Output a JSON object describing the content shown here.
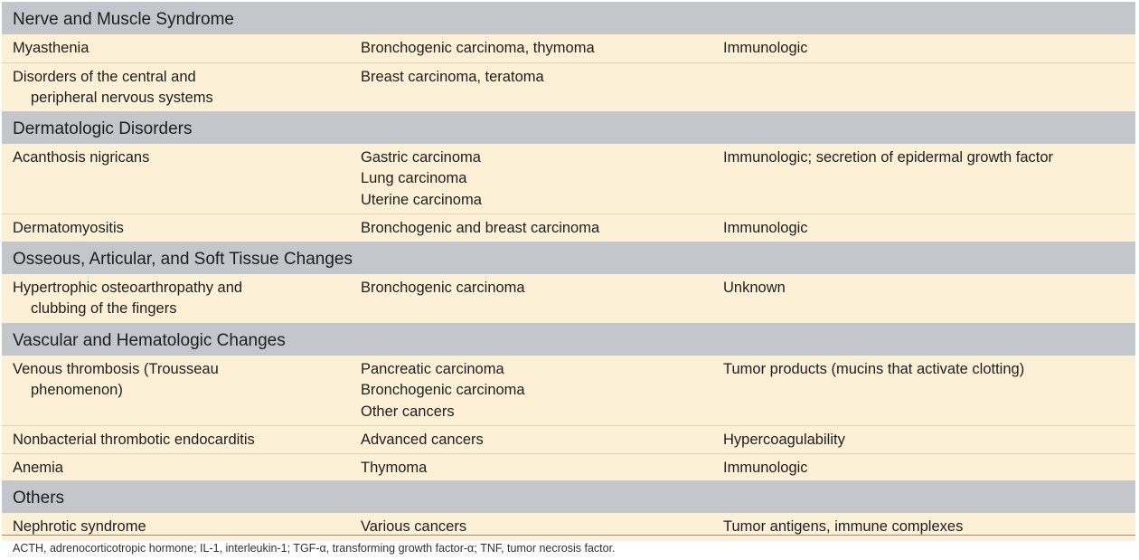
{
  "sections": [
    {
      "title": "Nerve and Muscle Syndrome",
      "rows": [
        {
          "col1": [
            "Myasthenia"
          ],
          "col2": [
            "Bronchogenic carcinoma, thymoma"
          ],
          "col3": [
            "Immunologic"
          ]
        },
        {
          "col1": [
            "Disorders of the central and",
            "peripheral nervous systems"
          ],
          "col2": [
            "Breast carcinoma, teratoma"
          ],
          "col3": []
        }
      ]
    },
    {
      "title": "Dermatologic Disorders",
      "rows": [
        {
          "col1": [
            "Acanthosis nigricans"
          ],
          "col2": [
            "Gastric carcinoma",
            "Lung carcinoma",
            "Uterine carcinoma"
          ],
          "col3": [
            "Immunologic; secretion of epidermal growth factor"
          ]
        },
        {
          "col1": [
            "Dermatomyositis"
          ],
          "col2": [
            "Bronchogenic and breast carcinoma"
          ],
          "col3": [
            "Immunologic"
          ]
        }
      ]
    },
    {
      "title": "Osseous, Articular, and Soft Tissue Changes",
      "rows": [
        {
          "col1": [
            "Hypertrophic osteoarthropathy and",
            "clubbing of the fingers"
          ],
          "col2": [
            "Bronchogenic carcinoma"
          ],
          "col3": [
            "Unknown"
          ]
        }
      ]
    },
    {
      "title": "Vascular and Hematologic Changes",
      "rows": [
        {
          "col1": [
            "Venous thrombosis (Trousseau",
            "phenomenon)"
          ],
          "col2": [
            "Pancreatic carcinoma",
            "Bronchogenic carcinoma",
            "Other cancers"
          ],
          "col3": [
            "Tumor products (mucins that activate clotting)"
          ]
        },
        {
          "col1": [
            "Nonbacterial thrombotic endocarditis"
          ],
          "col2": [
            "Advanced cancers"
          ],
          "col3": [
            "Hypercoagulability"
          ]
        },
        {
          "col1": [
            "Anemia"
          ],
          "col2": [
            "Thymoma"
          ],
          "col3": [
            "Immunologic"
          ]
        }
      ]
    },
    {
      "title": "Others",
      "rows": [
        {
          "col1": [
            "Nephrotic syndrome"
          ],
          "col2": [
            "Various cancers"
          ],
          "col3": [
            "Tumor antigens, immune complexes"
          ]
        }
      ]
    }
  ],
  "footnote": "ACTH, adrenocorticotropic hormone; IL-1, interleukin-1; TGF-α, transforming growth factor-α; TNF, tumor necrosis factor.",
  "colors": {
    "section_header_bg": "#c3c6cb",
    "row_bg": "#fcf1d6",
    "row_divider": "#e0d4b4"
  }
}
